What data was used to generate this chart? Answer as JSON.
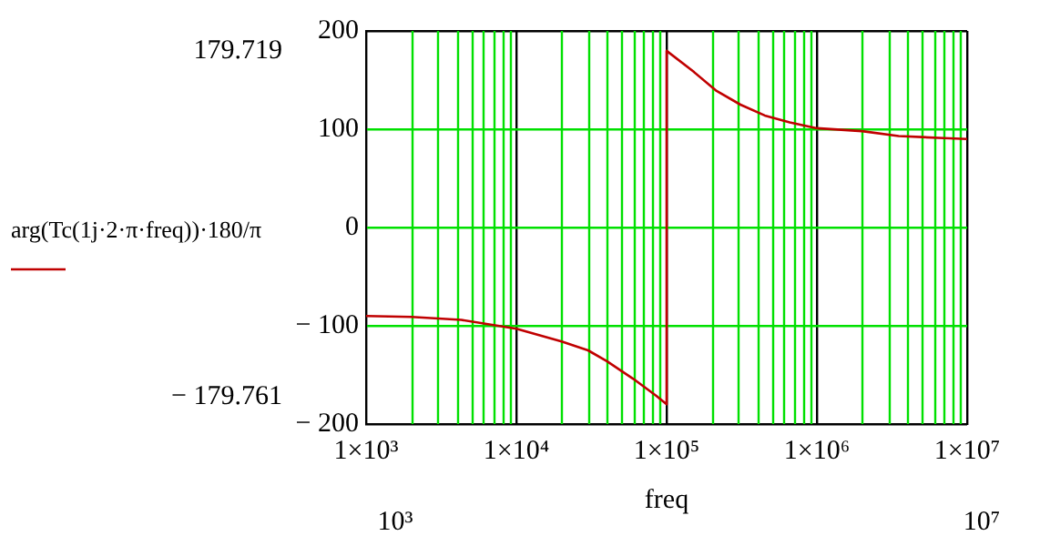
{
  "chart_data": {
    "type": "line",
    "xlabel": "freq",
    "log": "x",
    "grid": true,
    "legend": "left",
    "marker": "none",
    "line_style": "solid",
    "xlim": [
      1000,
      10000000
    ],
    "xticks": [
      {
        "value": 1000,
        "label": "1×10³"
      },
      {
        "value": 10000,
        "label": "1×10⁴"
      },
      {
        "value": 100000,
        "label": "1×10⁵"
      },
      {
        "value": 1000000,
        "label": "1×10⁶"
      },
      {
        "value": 10000000,
        "label": "1×10⁷"
      }
    ],
    "ylim": [
      -200,
      200
    ],
    "yticks": [
      -200,
      -100,
      0,
      100,
      200
    ],
    "x": [
      1000,
      2000,
      4300,
      10000,
      20000,
      30000,
      40000,
      60000,
      85000,
      100000,
      100000,
      150000,
      215000,
      310000,
      450000,
      660000,
      1000000,
      2000000,
      3500000,
      7000000,
      10000000
    ],
    "series": [
      {
        "name": "arg(Tc(1j·2·π·freq))·180/π",
        "color": "#c00000",
        "values": [
          -90,
          -91,
          -94,
          -103,
          -116,
          -125,
          -136,
          -154,
          -171,
          -179.761,
          179.719,
          159,
          139,
          125,
          114,
          107,
          101,
          98,
          93,
          91,
          90
        ]
      }
    ],
    "annotations": [
      "179.719",
      "− 179.761",
      "10³",
      "10⁷"
    ]
  }
}
